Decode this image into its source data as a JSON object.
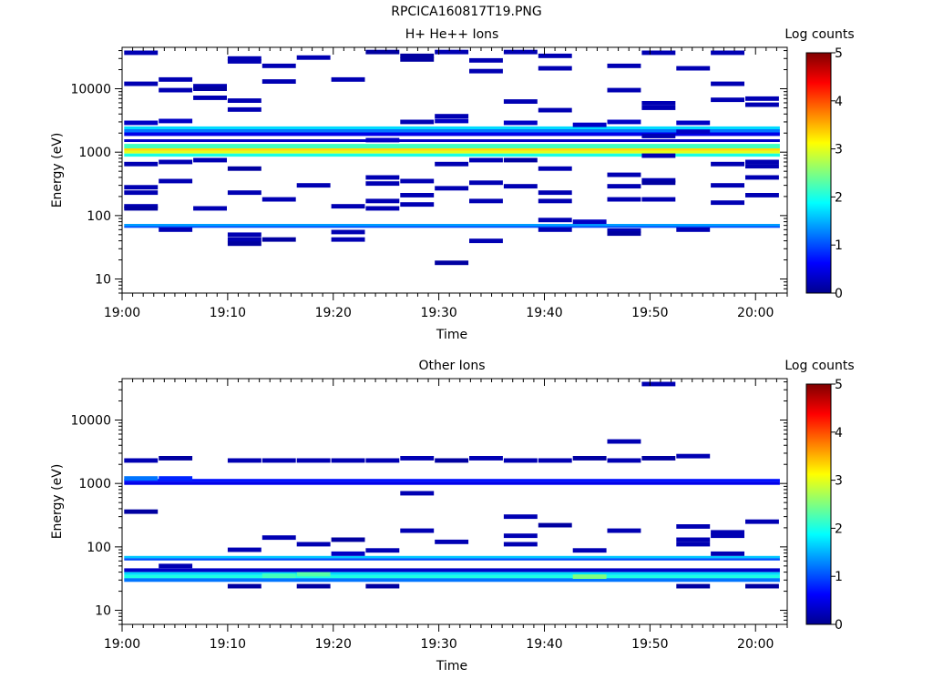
{
  "page": {
    "title": "RPCICA160817T19.PNG"
  },
  "chart_data": [
    {
      "type": "heatmap",
      "title": "H+ He++ Ions",
      "xlabel": "Time",
      "ylabel": "Energy (eV)",
      "yscale": "log",
      "ylim": [
        6,
        45000
      ],
      "xlim": [
        "19:00",
        "20:03"
      ],
      "xticks": [
        "19:00",
        "19:10",
        "19:20",
        "19:30",
        "19:40",
        "19:50",
        "20:00"
      ],
      "yticks": [
        "10",
        "100",
        "1000",
        "10000"
      ],
      "colorbar": {
        "label": "Log counts",
        "range": [
          0,
          5
        ],
        "ticks": [
          "0",
          "1",
          "2",
          "3",
          "4",
          "5"
        ]
      },
      "full_bands": [
        {
          "e_low": 1150,
          "e_high": 1350,
          "level": 2.2
        },
        {
          "e_low": 1050,
          "e_high": 1150,
          "level": 3.3
        },
        {
          "e_low": 950,
          "e_high": 1050,
          "level": 3.0
        },
        {
          "e_low": 850,
          "e_high": 950,
          "level": 2.0
        },
        {
          "e_low": 2300,
          "e_high": 2550,
          "level": 1.7
        },
        {
          "e_low": 2050,
          "e_high": 2300,
          "level": 1.2
        },
        {
          "e_low": 1800,
          "e_high": 2050,
          "level": 0.5
        },
        {
          "e_low": 1450,
          "e_high": 1600,
          "level": 0.3
        },
        {
          "e_low": 68,
          "e_high": 74,
          "level": 1.4
        },
        {
          "e_low": 64,
          "e_high": 68,
          "level": 1.0
        }
      ],
      "cells": [
        {
          "t": 1,
          "e": 37000,
          "level": 0.2
        },
        {
          "t": 1,
          "e": 12000,
          "level": 0.2
        },
        {
          "t": 1,
          "e": 2900,
          "level": 0.3
        },
        {
          "t": 1,
          "e": 650,
          "level": 0.2
        },
        {
          "t": 1,
          "e": 280,
          "level": 0.2
        },
        {
          "t": 1,
          "e": 230,
          "level": 0.2
        },
        {
          "t": 1,
          "e": 140,
          "level": 0.2
        },
        {
          "t": 1,
          "e": 130,
          "level": 0.1
        },
        {
          "t": 2,
          "e": 14000,
          "level": 0.2
        },
        {
          "t": 2,
          "e": 9500,
          "level": 0.2
        },
        {
          "t": 2,
          "e": 3100,
          "level": 0.3
        },
        {
          "t": 2,
          "e": 700,
          "level": 0.2
        },
        {
          "t": 2,
          "e": 350,
          "level": 0.2
        },
        {
          "t": 2,
          "e": 60,
          "level": 0.2
        },
        {
          "t": 3,
          "e": 11000,
          "level": 0.2
        },
        {
          "t": 3,
          "e": 10000,
          "level": 0.1
        },
        {
          "t": 3,
          "e": 7200,
          "level": 0.2
        },
        {
          "t": 3,
          "e": 750,
          "level": 0.2
        },
        {
          "t": 3,
          "e": 130,
          "level": 0.2
        },
        {
          "t": 4,
          "e": 30000,
          "level": 0.2
        },
        {
          "t": 4,
          "e": 27000,
          "level": 0.2
        },
        {
          "t": 4,
          "e": 6500,
          "level": 0.2
        },
        {
          "t": 4,
          "e": 4700,
          "level": 0.2
        },
        {
          "t": 4,
          "e": 550,
          "level": 0.1
        },
        {
          "t": 4,
          "e": 230,
          "level": 0.2
        },
        {
          "t": 4,
          "e": 50,
          "level": 0.2
        },
        {
          "t": 4,
          "e": 42,
          "level": 0.2
        },
        {
          "t": 4,
          "e": 36,
          "level": 0.1
        },
        {
          "t": 5,
          "e": 23000,
          "level": 0.2
        },
        {
          "t": 5,
          "e": 13000,
          "level": 0.2
        },
        {
          "t": 5,
          "e": 180,
          "level": 0.2
        },
        {
          "t": 5,
          "e": 42,
          "level": 0.1
        },
        {
          "t": 6,
          "e": 31000,
          "level": 0.2
        },
        {
          "t": 6,
          "e": 300,
          "level": 0.2
        },
        {
          "t": 7,
          "e": 14000,
          "level": 0.2
        },
        {
          "t": 7,
          "e": 140,
          "level": 0.2
        },
        {
          "t": 7,
          "e": 55,
          "level": 0.2
        },
        {
          "t": 7,
          "e": 42,
          "level": 0.2
        },
        {
          "t": 8,
          "e": 38000,
          "level": 0.1
        },
        {
          "t": 8,
          "e": 1550,
          "level": 0.3
        },
        {
          "t": 8,
          "e": 400,
          "level": 0.2
        },
        {
          "t": 8,
          "e": 320,
          "level": 0.2
        },
        {
          "t": 8,
          "e": 170,
          "level": 0.2
        },
        {
          "t": 8,
          "e": 130,
          "level": 0.2
        },
        {
          "t": 9,
          "e": 33000,
          "level": 0.1
        },
        {
          "t": 9,
          "e": 29000,
          "level": 0.1
        },
        {
          "t": 9,
          "e": 3000,
          "level": 0.2
        },
        {
          "t": 9,
          "e": 350,
          "level": 0.2
        },
        {
          "t": 9,
          "e": 210,
          "level": 0.2
        },
        {
          "t": 9,
          "e": 150,
          "level": 0.2
        },
        {
          "t": 10,
          "e": 38000,
          "level": 0.2
        },
        {
          "t": 10,
          "e": 3700,
          "level": 0.2
        },
        {
          "t": 10,
          "e": 3100,
          "level": 0.3
        },
        {
          "t": 10,
          "e": 650,
          "level": 0.2
        },
        {
          "t": 10,
          "e": 270,
          "level": 0.2
        },
        {
          "t": 10,
          "e": 18,
          "level": 0.1
        },
        {
          "t": 11,
          "e": 28000,
          "level": 0.2
        },
        {
          "t": 11,
          "e": 19000,
          "level": 0.2
        },
        {
          "t": 11,
          "e": 750,
          "level": 0.2
        },
        {
          "t": 11,
          "e": 330,
          "level": 0.2
        },
        {
          "t": 11,
          "e": 170,
          "level": 0.2
        },
        {
          "t": 11,
          "e": 40,
          "level": 0.2
        },
        {
          "t": 12,
          "e": 38000,
          "level": 0.2
        },
        {
          "t": 12,
          "e": 6300,
          "level": 0.2
        },
        {
          "t": 12,
          "e": 2900,
          "level": 0.3
        },
        {
          "t": 12,
          "e": 750,
          "level": 0.1
        },
        {
          "t": 12,
          "e": 290,
          "level": 0.2
        },
        {
          "t": 13,
          "e": 33000,
          "level": 0.2
        },
        {
          "t": 13,
          "e": 21000,
          "level": 0.2
        },
        {
          "t": 13,
          "e": 4600,
          "level": 0.2
        },
        {
          "t": 13,
          "e": 550,
          "level": 0.2
        },
        {
          "t": 13,
          "e": 230,
          "level": 0.2
        },
        {
          "t": 13,
          "e": 170,
          "level": 0.2
        },
        {
          "t": 13,
          "e": 85,
          "level": 0.2
        },
        {
          "t": 13,
          "e": 60,
          "level": 0.2
        },
        {
          "t": 14,
          "e": 2700,
          "level": 0.3
        },
        {
          "t": 14,
          "e": 80,
          "level": 0.3
        },
        {
          "t": 15,
          "e": 23000,
          "level": 0.2
        },
        {
          "t": 15,
          "e": 9500,
          "level": 0.2
        },
        {
          "t": 15,
          "e": 3000,
          "level": 0.3
        },
        {
          "t": 15,
          "e": 440,
          "level": 0.2
        },
        {
          "t": 15,
          "e": 290,
          "level": 0.2
        },
        {
          "t": 15,
          "e": 180,
          "level": 0.2
        },
        {
          "t": 15,
          "e": 58,
          "level": 0.2
        },
        {
          "t": 15,
          "e": 52,
          "level": 0.1
        },
        {
          "t": 16,
          "e": 37000,
          "level": 0.2
        },
        {
          "t": 16,
          "e": 5900,
          "level": 0.2
        },
        {
          "t": 16,
          "e": 5000,
          "level": 0.2
        },
        {
          "t": 16,
          "e": 1800,
          "level": 0.2
        },
        {
          "t": 16,
          "e": 880,
          "level": 0.2
        },
        {
          "t": 16,
          "e": 360,
          "level": 0.2
        },
        {
          "t": 16,
          "e": 330,
          "level": 0.1
        },
        {
          "t": 16,
          "e": 180,
          "level": 0.2
        },
        {
          "t": 17,
          "e": 21000,
          "level": 0.2
        },
        {
          "t": 17,
          "e": 2900,
          "level": 0.3
        },
        {
          "t": 17,
          "e": 2100,
          "level": 0.3
        },
        {
          "t": 17,
          "e": 60,
          "level": 0.2
        },
        {
          "t": 18,
          "e": 37000,
          "level": 0.2
        },
        {
          "t": 18,
          "e": 12000,
          "level": 0.2
        },
        {
          "t": 18,
          "e": 6700,
          "level": 0.2
        },
        {
          "t": 18,
          "e": 650,
          "level": 0.2
        },
        {
          "t": 18,
          "e": 300,
          "level": 0.2
        },
        {
          "t": 18,
          "e": 160,
          "level": 0.2
        },
        {
          "t": 19,
          "e": 7000,
          "level": 0.2
        },
        {
          "t": 19,
          "e": 5600,
          "level": 0.2
        },
        {
          "t": 19,
          "e": 700,
          "level": 0.2
        },
        {
          "t": 19,
          "e": 600,
          "level": 0.2
        },
        {
          "t": 19,
          "e": 400,
          "level": 0.2
        },
        {
          "t": 19,
          "e": 210,
          "level": 0.2
        }
      ]
    },
    {
      "type": "heatmap",
      "title": "Other Ions",
      "xlabel": "Time",
      "ylabel": "Energy (eV)",
      "yscale": "log",
      "ylim": [
        6,
        45000
      ],
      "xlim": [
        "19:00",
        "20:03"
      ],
      "xticks": [
        "19:00",
        "19:10",
        "19:20",
        "19:30",
        "19:40",
        "19:50",
        "20:00"
      ],
      "yticks": [
        "10",
        "100",
        "1000",
        "10000"
      ],
      "colorbar": {
        "label": "Log counts",
        "range": [
          0,
          5
        ],
        "ticks": [
          "0",
          "1",
          "2",
          "3",
          "4",
          "5"
        ]
      },
      "full_bands": [
        {
          "e_low": 1060,
          "e_high": 1180,
          "level": 0.7
        },
        {
          "e_low": 950,
          "e_high": 1060,
          "level": 0.5
        },
        {
          "e_low": 66,
          "e_high": 72,
          "level": 1.6
        },
        {
          "e_low": 61,
          "e_high": 66,
          "level": 1.0
        },
        {
          "e_low": 40,
          "e_high": 46,
          "level": 0.3
        },
        {
          "e_low": 36,
          "e_high": 40,
          "level": 1.7
        },
        {
          "e_low": 32,
          "e_high": 36,
          "level": 2.0
        },
        {
          "e_low": 28,
          "e_high": 32,
          "level": 1.2
        }
      ],
      "cells": [
        {
          "t": 1,
          "e": 2300,
          "level": 0.2
        },
        {
          "t": 1,
          "e": 1200,
          "level": 1.2
        },
        {
          "t": 1,
          "e": 360,
          "level": 0.1
        },
        {
          "t": 2,
          "e": 2500,
          "level": 0.1
        },
        {
          "t": 2,
          "e": 1200,
          "level": 0.8
        },
        {
          "t": 2,
          "e": 50,
          "level": 0.2
        },
        {
          "t": 4,
          "e": 2300,
          "level": 0.2
        },
        {
          "t": 4,
          "e": 90,
          "level": 0.2
        },
        {
          "t": 4,
          "e": 24,
          "level": 0.1
        },
        {
          "t": 5,
          "e": 2300,
          "level": 0.2
        },
        {
          "t": 5,
          "e": 140,
          "level": 0.2
        },
        {
          "t": 5,
          "e": 35,
          "level": 2.2
        },
        {
          "t": 6,
          "e": 2300,
          "level": 0.2
        },
        {
          "t": 6,
          "e": 110,
          "level": 0.2
        },
        {
          "t": 6,
          "e": 24,
          "level": 0.1
        },
        {
          "t": 6,
          "e": 37,
          "level": 2.3
        },
        {
          "t": 7,
          "e": 2300,
          "level": 0.2
        },
        {
          "t": 7,
          "e": 130,
          "level": 0.1
        },
        {
          "t": 7,
          "e": 78,
          "level": 0.3
        },
        {
          "t": 8,
          "e": 2300,
          "level": 0.2
        },
        {
          "t": 8,
          "e": 88,
          "level": 0.2
        },
        {
          "t": 8,
          "e": 24,
          "level": 0.1
        },
        {
          "t": 9,
          "e": 2500,
          "level": 0.2
        },
        {
          "t": 9,
          "e": 700,
          "level": 0.2
        },
        {
          "t": 9,
          "e": 180,
          "level": 0.2
        },
        {
          "t": 10,
          "e": 2300,
          "level": 0.1
        },
        {
          "t": 10,
          "e": 120,
          "level": 0.2
        },
        {
          "t": 11,
          "e": 2500,
          "level": 0.2
        },
        {
          "t": 12,
          "e": 2300,
          "level": 0.2
        },
        {
          "t": 12,
          "e": 300,
          "level": 0.2
        },
        {
          "t": 12,
          "e": 150,
          "level": 0.2
        },
        {
          "t": 12,
          "e": 110,
          "level": 0.2
        },
        {
          "t": 13,
          "e": 2300,
          "level": 0.2
        },
        {
          "t": 13,
          "e": 220,
          "level": 0.1
        },
        {
          "t": 14,
          "e": 2500,
          "level": 0.1
        },
        {
          "t": 14,
          "e": 88,
          "level": 0.2
        },
        {
          "t": 14,
          "e": 34,
          "level": 2.5
        },
        {
          "t": 15,
          "e": 4600,
          "level": 0.2
        },
        {
          "t": 15,
          "e": 2300,
          "level": 0.2
        },
        {
          "t": 15,
          "e": 180,
          "level": 0.2
        },
        {
          "t": 16,
          "e": 37000,
          "level": 0.2
        },
        {
          "t": 16,
          "e": 2500,
          "level": 0.1
        },
        {
          "t": 17,
          "e": 2700,
          "level": 0.2
        },
        {
          "t": 17,
          "e": 210,
          "level": 0.2
        },
        {
          "t": 17,
          "e": 130,
          "level": 0.2
        },
        {
          "t": 17,
          "e": 110,
          "level": 0.2
        },
        {
          "t": 17,
          "e": 24,
          "level": 0.1
        },
        {
          "t": 18,
          "e": 170,
          "level": 0.2
        },
        {
          "t": 18,
          "e": 150,
          "level": 0.2
        },
        {
          "t": 18,
          "e": 78,
          "level": 0.2
        },
        {
          "t": 19,
          "e": 250,
          "level": 0.2
        },
        {
          "t": 19,
          "e": 24,
          "level": 0.1
        }
      ]
    }
  ]
}
